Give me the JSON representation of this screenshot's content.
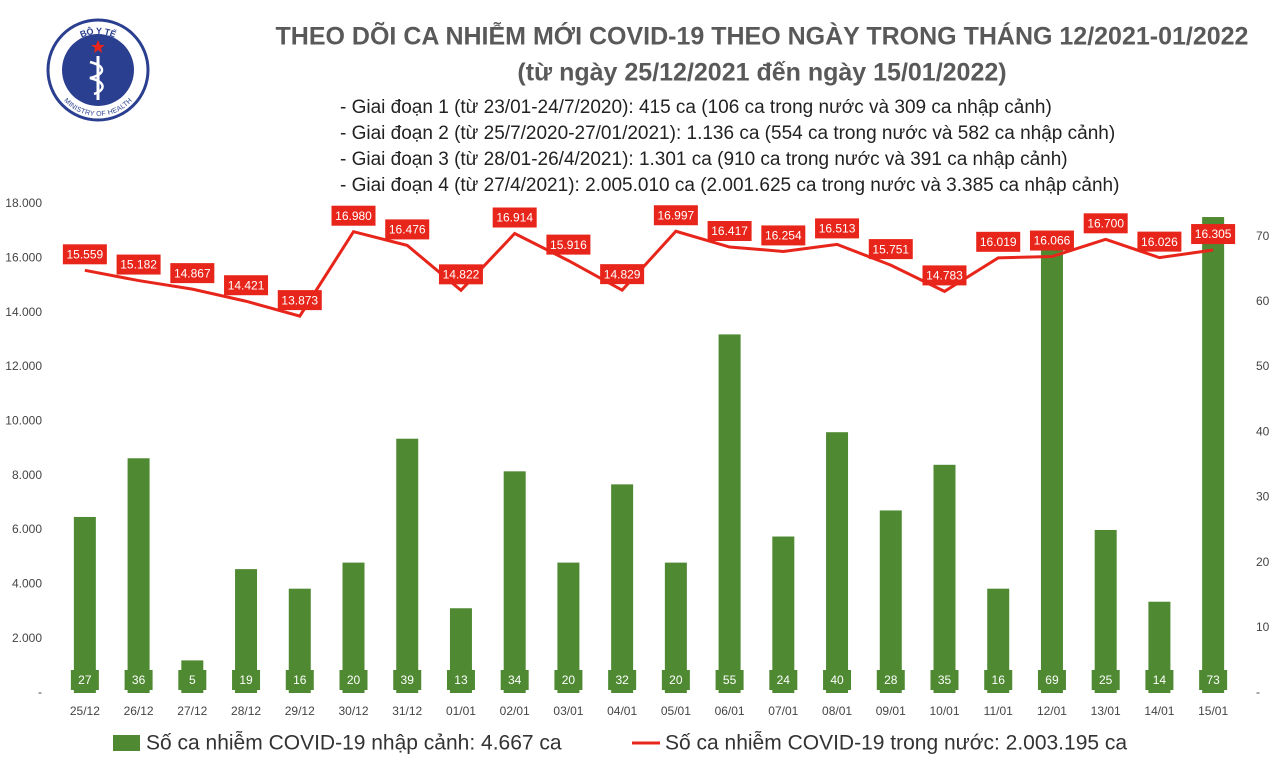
{
  "logo": {
    "top": "BỘ Y TẾ",
    "bottom": "MINISTRY OF HEALTH"
  },
  "chart_data": {
    "type": "bar",
    "title": "THEO DÕI CA NHIỄM MỚI COVID-19 THEO NGÀY TRONG THÁNG 12/2021-01/2022",
    "subtitle": "(từ ngày 25/12/2021 đến ngày 15/01/2022)",
    "notes": [
      "- Giai đoạn 1 (từ 23/01-24/7/2020): 415 ca (106 ca trong nước và 309 ca nhập cảnh)",
      "- Giai đoạn 2 (từ 25/7/2020-27/01/2021): 1.136 ca (554 ca trong nước và 582 ca nhập cảnh)",
      "- Giai đoạn 3 (từ 28/01-26/4/2021): 1.301 ca (910 ca trong nước và 391 ca nhập cảnh)",
      "- Giai đoạn 4 (từ 27/4/2021): 2.005.010 ca (2.001.625 ca trong nước và 3.385 ca nhập cảnh)"
    ],
    "categories": [
      "25/12",
      "26/12",
      "27/12",
      "28/12",
      "29/12",
      "30/12",
      "31/12",
      "01/01",
      "02/01",
      "03/01",
      "04/01",
      "05/01",
      "06/01",
      "07/01",
      "08/01",
      "09/01",
      "10/01",
      "11/01",
      "12/01",
      "13/01",
      "14/01",
      "15/01"
    ],
    "series": [
      {
        "name": "Số ca nhiễm COVID-19 nhập cảnh: 4.667 ca",
        "type": "bar",
        "axis": "y2",
        "color": "#4f8a33",
        "values": [
          27,
          36,
          5,
          19,
          16,
          20,
          39,
          13,
          34,
          20,
          32,
          20,
          55,
          24,
          40,
          28,
          35,
          16,
          69,
          25,
          14,
          73
        ]
      },
      {
        "name": "Số ca nhiễm COVID-19 trong nước: 2.003.195 ca",
        "type": "line",
        "color": "#e8251a",
        "values": [
          15559,
          15182,
          14867,
          14421,
          13873,
          16980,
          16476,
          14822,
          16914,
          15916,
          14829,
          16997,
          16417,
          16254,
          16513,
          15751,
          14783,
          16019,
          16066,
          16700,
          16026,
          16305
        ],
        "value_labels": [
          "15.559",
          "15.182",
          "14.867",
          "14.421",
          "13.873",
          "16.980",
          "16.476",
          "14.822",
          "16.914",
          "15.916",
          "14.829",
          "16.997",
          "16.417",
          "16.254",
          "16.513",
          "15.751",
          "14.783",
          "16.019",
          "16.066",
          "16.700",
          "16.026",
          "16.305"
        ]
      }
    ],
    "ylim": [
      0,
      18000
    ],
    "yticks": [
      {
        "value": 0,
        "label": "-"
      },
      {
        "value": 2000,
        "label": "2.000"
      },
      {
        "value": 4000,
        "label": "4.000"
      },
      {
        "value": 6000,
        "label": "6.000"
      },
      {
        "value": 8000,
        "label": "8.000"
      },
      {
        "value": 10000,
        "label": "10.000"
      },
      {
        "value": 12000,
        "label": "12.000"
      },
      {
        "value": 14000,
        "label": "14.000"
      },
      {
        "value": 16000,
        "label": "16.000"
      },
      {
        "value": 18000,
        "label": "18.000"
      }
    ],
    "y2lim": [
      0,
      75
    ],
    "y2ticks": [
      {
        "value": 0,
        "label": "-"
      },
      10,
      20,
      30,
      40,
      50,
      60,
      70
    ],
    "grid": false
  }
}
